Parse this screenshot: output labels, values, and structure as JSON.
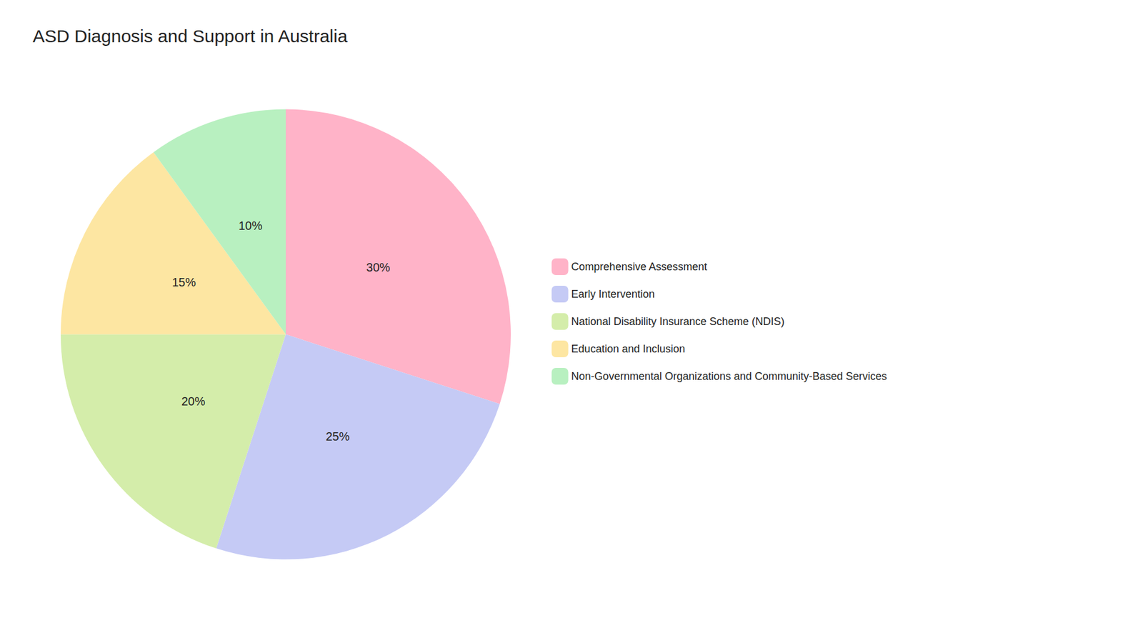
{
  "chart_data": {
    "type": "pie",
    "title": "ASD Diagnosis and Support in Australia",
    "categories": [
      "Comprehensive Assessment",
      "Early Intervention",
      "National Disability Insurance Scheme (NDIS)",
      "Education and Inclusion",
      "Non-Governmental Organizations and Community-Based Services"
    ],
    "values": [
      30,
      25,
      20,
      15,
      10
    ],
    "value_labels": [
      "30%",
      "25%",
      "20%",
      "15%",
      "10%"
    ],
    "colors": [
      "#ffb3c8",
      "#c5caf5",
      "#d4edaa",
      "#fde6a2",
      "#b8f0c0"
    ],
    "data_labels": true,
    "legend": "right"
  }
}
